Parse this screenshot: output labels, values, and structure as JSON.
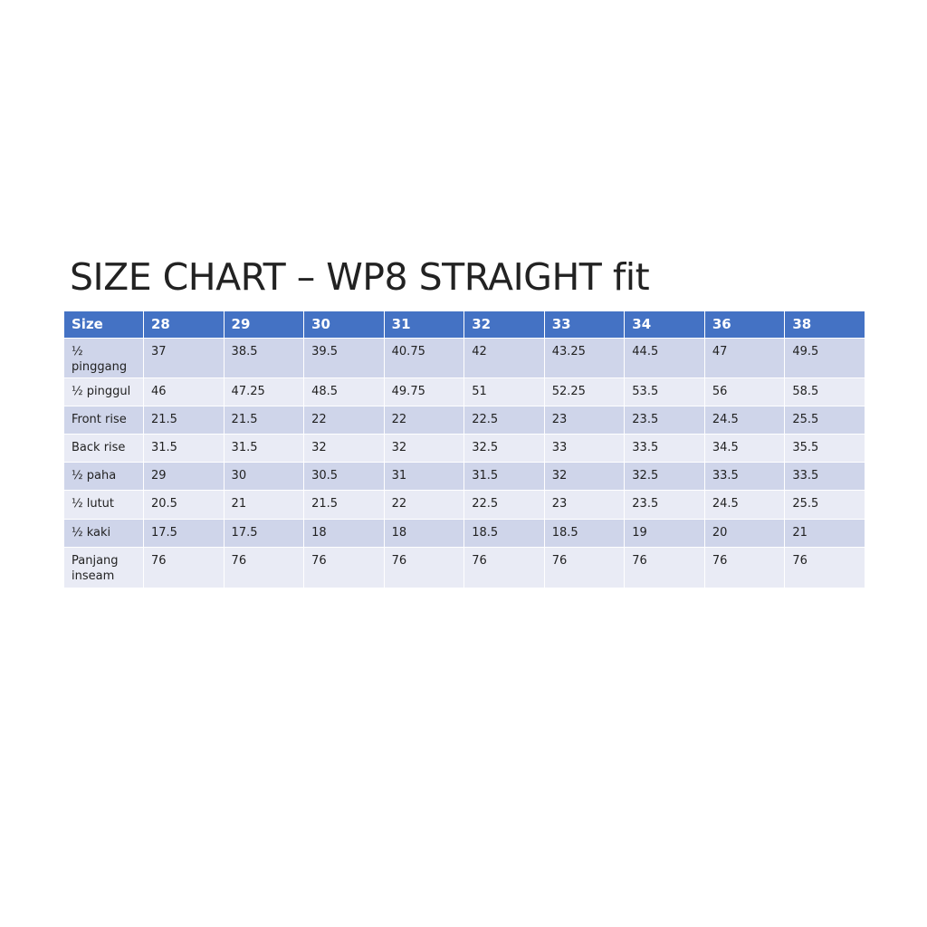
{
  "title": "SIZE CHART – WP8 STRAIGHT fit",
  "table": {
    "header": [
      "Size",
      "28",
      "29",
      "30",
      "31",
      "32",
      "33",
      "34",
      "36",
      "38"
    ],
    "rows": [
      [
        "½ pinggang",
        "37",
        "38.5",
        "39.5",
        "40.75",
        "42",
        "43.25",
        "44.5",
        "47",
        "49.5"
      ],
      [
        "½ pinggul",
        "46",
        "47.25",
        "48.5",
        "49.75",
        "51",
        "52.25",
        "53.5",
        "56",
        "58.5"
      ],
      [
        "Front rise",
        "21.5",
        "21.5",
        "22",
        "22",
        "22.5",
        "23",
        "23.5",
        "24.5",
        "25.5"
      ],
      [
        "Back rise",
        "31.5",
        "31.5",
        "32",
        "32",
        "32.5",
        "33",
        "33.5",
        "34.5",
        "35.5"
      ],
      [
        "½ paha",
        "29",
        "30",
        "30.5",
        "31",
        "31.5",
        "32",
        "32.5",
        "33.5",
        "33.5"
      ],
      [
        "½ lutut",
        "20.5",
        "21",
        "21.5",
        "22",
        "22.5",
        "23",
        "23.5",
        "24.5",
        "25.5"
      ],
      [
        "½ kaki",
        "17.5",
        "17.5",
        "18",
        "18",
        "18.5",
        "18.5",
        "19",
        "20",
        "21"
      ],
      [
        "Panjang inseam",
        "76",
        "76",
        "76",
        "76",
        "76",
        "76",
        "76",
        "76",
        "76"
      ]
    ]
  }
}
